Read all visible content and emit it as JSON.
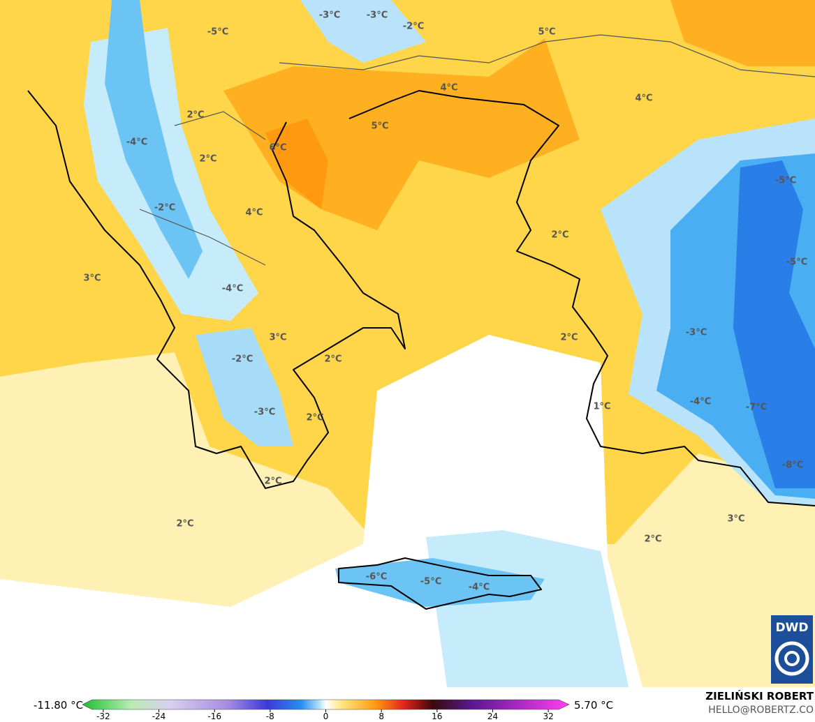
{
  "map": {
    "labels": [
      "-3°C",
      "-3°C",
      "-2°C",
      "-5°C",
      "5°C",
      "4°C",
      "4°C",
      "2°C",
      "5°C",
      "-4°C",
      "6°C",
      "2°C",
      "-5°C",
      "-2°C",
      "4°C",
      "2°C",
      "3°C",
      "-5°C",
      "-4°C",
      "-3°C",
      "2°C",
      "3°C",
      "-2°C",
      "2°C",
      "1°C",
      "-4°C",
      "-7°C",
      "-3°C",
      "2°C",
      "-8°C",
      "2°C",
      "2°C",
      "3°C",
      "2°C",
      "-6°C",
      "-5°C",
      "-4°C"
    ],
    "colorbar": {
      "min_label": "-11.80 °C",
      "max_label": "5.70 °C",
      "lim": [
        -35,
        35
      ],
      "ticks": [
        -32,
        -24,
        -16,
        -8,
        0,
        8,
        16,
        24,
        32
      ]
    },
    "credit": {
      "author": "ZIELIŃSKI ROBERT",
      "email": "HELLO@ROBERTZ.CO",
      "logo": "DWD"
    }
  }
}
